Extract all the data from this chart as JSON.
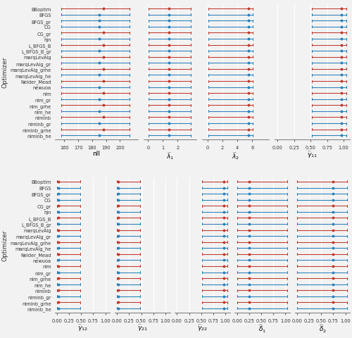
{
  "optimizers": [
    "BBoptim",
    "BFGS",
    "BFGS_gr",
    "CG",
    "CG_gr",
    "hjn",
    "L_BFGS_B",
    "L_BFGS_B_gr",
    "marqLevAlg",
    "marqLevAlg_gr",
    "marqLevAlg_grhe",
    "marqLevAlg_he",
    "Nelder_Mead",
    "newuoa",
    "nlm",
    "nlm_gr",
    "nlm_grhe",
    "nlm_he",
    "nlminb",
    "nlminb_gr",
    "nlminb_grhe",
    "nlminb_he"
  ],
  "colors": [
    "#c0392b",
    "#2980b9",
    "#2980b9",
    "#2980b9",
    "#c0392b",
    "#2980b9",
    "#c0392b",
    "#2980b9",
    "#c0392b",
    "#2980b9",
    "#c0392b",
    "#2980b9",
    "#c0392b",
    "#2980b9",
    "#c0392b",
    "#2980b9",
    "#c0392b",
    "#2980b9",
    "#c0392b",
    "#2980b9",
    "#c0392b",
    "#2980b9"
  ],
  "panels_row1": {
    "nll": {
      "xlabel": "nll",
      "xlim": [
        153,
        213
      ],
      "xticks": [
        160,
        170,
        180,
        190,
        200
      ],
      "medians": [
        188,
        185,
        185,
        185,
        188,
        185,
        188,
        185,
        188,
        185,
        188,
        185,
        188,
        185,
        188,
        185,
        188,
        185,
        188,
        185,
        188,
        185
      ],
      "ci_lo": [
        158,
        158,
        158,
        158,
        158,
        158,
        158,
        158,
        158,
        158,
        158,
        158,
        158,
        158,
        158,
        158,
        158,
        158,
        158,
        158,
        158,
        158
      ],
      "ci_hi": [
        207,
        207,
        207,
        207,
        207,
        207,
        207,
        207,
        207,
        207,
        207,
        207,
        207,
        207,
        207,
        207,
        207,
        207,
        207,
        207,
        207,
        207
      ]
    },
    "lambda1": {
      "xlabel": "$\\widehat{\\lambda}_1$",
      "xlim": [
        -0.3,
        3.3
      ],
      "xticks": [
        0,
        1,
        2
      ],
      "medians": [
        1.4,
        1.4,
        1.4,
        1.4,
        1.4,
        1.4,
        1.4,
        1.4,
        1.4,
        1.4,
        1.4,
        1.4,
        1.4,
        1.4,
        1.4,
        1.4,
        1.4,
        1.4,
        1.4,
        1.4,
        1.4,
        1.4
      ],
      "ci_lo": [
        0.05,
        0.05,
        0.05,
        0.05,
        0.05,
        0.05,
        0.05,
        0.05,
        0.05,
        0.05,
        0.05,
        0.05,
        0.05,
        0.05,
        0.05,
        0.05,
        0.05,
        0.05,
        0.05,
        0.05,
        0.05,
        0.05
      ],
      "ci_hi": [
        2.9,
        2.9,
        2.9,
        2.9,
        2.9,
        2.9,
        2.9,
        2.9,
        2.9,
        2.9,
        2.9,
        2.9,
        2.9,
        2.9,
        2.9,
        2.9,
        2.9,
        2.9,
        2.9,
        2.9,
        2.9,
        2.9
      ]
    },
    "lambda2": {
      "xlabel": "$\\widehat{\\lambda}_2$",
      "xlim": [
        -0.7,
        8.2
      ],
      "xticks": [
        0,
        2,
        4,
        6
      ],
      "medians": [
        5.5,
        5.5,
        5.5,
        5.5,
        5.5,
        5.5,
        5.5,
        5.5,
        5.5,
        5.5,
        5.5,
        5.5,
        5.5,
        5.5,
        5.5,
        5.5,
        5.5,
        5.5,
        5.5,
        5.5,
        5.5,
        5.5
      ],
      "ci_lo": [
        0.1,
        0.1,
        0.1,
        0.1,
        0.1,
        0.1,
        0.1,
        0.1,
        0.1,
        0.1,
        0.1,
        0.1,
        0.1,
        0.1,
        0.1,
        0.1,
        0.1,
        0.1,
        0.1,
        0.1,
        0.1,
        0.1
      ],
      "ci_hi": [
        6.1,
        6.1,
        6.1,
        6.1,
        6.1,
        6.1,
        6.1,
        6.1,
        6.1,
        6.1,
        6.1,
        6.1,
        6.1,
        6.1,
        6.1,
        6.1,
        6.1,
        6.1,
        6.1,
        6.1,
        6.1,
        6.1
      ]
    },
    "gamma11": {
      "xlabel": "$\\widehat{\\gamma}_{11}$",
      "xlim": [
        -0.05,
        1.1
      ],
      "xticks": [
        0.0,
        0.25,
        0.5,
        0.75,
        1.0
      ],
      "medians": [
        0.97,
        0.97,
        0.97,
        0.97,
        0.97,
        0.97,
        0.97,
        0.97,
        0.97,
        0.97,
        0.97,
        0.97,
        0.97,
        0.97,
        0.97,
        0.97,
        0.97,
        0.97,
        0.97,
        0.97,
        0.97,
        0.97
      ],
      "ci_lo": [
        0.52,
        0.52,
        0.52,
        0.52,
        0.52,
        0.52,
        0.52,
        0.52,
        0.52,
        0.52,
        0.52,
        0.52,
        0.52,
        0.52,
        0.52,
        0.52,
        0.52,
        0.52,
        0.52,
        0.52,
        0.52,
        0.52
      ],
      "ci_hi": [
        1.04,
        1.04,
        1.04,
        1.04,
        1.04,
        1.04,
        1.04,
        1.04,
        1.04,
        1.04,
        1.04,
        1.04,
        1.04,
        1.04,
        1.04,
        1.04,
        1.04,
        1.04,
        1.04,
        1.04,
        1.04,
        1.04
      ]
    }
  },
  "panels_row2": {
    "gamma12": {
      "xlabel": "$\\widehat{\\gamma}_{12}$",
      "xlim": [
        -0.05,
        1.1
      ],
      "xticks": [
        0.0,
        0.25,
        0.5,
        0.75,
        1.0
      ],
      "medians": [
        0.03,
        0.03,
        0.03,
        0.03,
        0.03,
        0.03,
        0.03,
        0.03,
        0.03,
        0.03,
        0.03,
        0.03,
        0.03,
        0.03,
        0.03,
        0.03,
        0.03,
        0.03,
        0.03,
        0.03,
        0.03,
        0.03
      ],
      "ci_lo": [
        0.0,
        0.0,
        0.0,
        0.0,
        0.0,
        0.0,
        0.0,
        0.0,
        0.0,
        0.0,
        0.0,
        0.0,
        0.0,
        0.0,
        0.0,
        0.0,
        0.0,
        0.0,
        0.0,
        0.0,
        0.0,
        0.0
      ],
      "ci_hi": [
        0.48,
        0.48,
        0.48,
        0.48,
        0.48,
        0.48,
        0.48,
        0.48,
        0.48,
        0.48,
        0.48,
        0.48,
        0.48,
        0.48,
        0.48,
        0.48,
        0.48,
        0.48,
        0.48,
        0.48,
        0.48,
        0.48
      ]
    },
    "gamma21": {
      "xlabel": "$\\widehat{\\gamma}_{21}$",
      "xlim": [
        -0.05,
        1.1
      ],
      "xticks": [
        0.0,
        0.25,
        0.5,
        0.75,
        1.0
      ],
      "medians": [
        0.03,
        0.03,
        0.03,
        0.03,
        0.03,
        0.03,
        0.03,
        0.03,
        0.03,
        0.03,
        0.03,
        0.03,
        0.03,
        0.03,
        0.03,
        0.03,
        0.03,
        0.03,
        0.03,
        0.03,
        0.03,
        0.03
      ],
      "ci_lo": [
        0.0,
        0.0,
        0.0,
        0.0,
        0.0,
        0.0,
        0.0,
        0.0,
        0.0,
        0.0,
        0.0,
        0.0,
        0.0,
        0.0,
        0.0,
        0.0,
        0.0,
        0.0,
        0.0,
        0.0,
        0.0,
        0.0
      ],
      "ci_hi": [
        0.48,
        0.48,
        0.48,
        0.48,
        0.48,
        0.48,
        0.48,
        0.48,
        0.48,
        0.48,
        0.48,
        0.48,
        0.48,
        0.48,
        0.48,
        0.48,
        0.48,
        0.48,
        0.48,
        0.48,
        0.48,
        0.48
      ]
    },
    "gamma22": {
      "xlabel": "$\\widehat{\\gamma}_{22}$",
      "xlim": [
        -0.05,
        1.1
      ],
      "xticks": [
        0.0,
        0.25,
        0.5,
        0.75,
        1.0
      ],
      "medians": [
        0.97,
        0.97,
        0.97,
        0.97,
        0.97,
        0.97,
        0.97,
        0.97,
        0.97,
        0.97,
        0.97,
        0.97,
        0.97,
        0.97,
        0.97,
        0.97,
        0.97,
        0.97,
        0.97,
        0.97,
        0.97,
        0.97
      ],
      "ci_lo": [
        0.52,
        0.52,
        0.52,
        0.52,
        0.52,
        0.52,
        0.52,
        0.52,
        0.52,
        0.52,
        0.52,
        0.52,
        0.52,
        0.52,
        0.52,
        0.52,
        0.52,
        0.52,
        0.52,
        0.52,
        0.52,
        0.52
      ],
      "ci_hi": [
        1.04,
        1.04,
        1.04,
        1.04,
        1.04,
        1.04,
        1.04,
        1.04,
        1.04,
        1.04,
        1.04,
        1.04,
        1.04,
        1.04,
        1.04,
        1.04,
        1.04,
        1.04,
        1.04,
        1.04,
        1.04,
        1.04
      ]
    },
    "delta1": {
      "xlabel": "$\\widehat{\\delta}_1$",
      "xlim": [
        -0.05,
        1.1
      ],
      "xticks": [
        0.0,
        0.25,
        0.5,
        0.75,
        1.0
      ],
      "medians": [
        0.25,
        0.25,
        0.25,
        0.25,
        0.25,
        0.25,
        0.25,
        0.25,
        0.25,
        0.25,
        0.25,
        0.25,
        0.25,
        0.25,
        0.25,
        0.25,
        0.25,
        0.25,
        0.25,
        0.25,
        0.25,
        0.25
      ],
      "ci_lo": [
        0.0,
        0.0,
        0.0,
        0.0,
        0.0,
        0.0,
        0.0,
        0.0,
        0.0,
        0.0,
        0.0,
        0.0,
        0.0,
        0.0,
        0.0,
        0.0,
        0.0,
        0.0,
        0.0,
        0.0,
        0.0,
        0.0
      ],
      "ci_hi": [
        1.04,
        1.04,
        1.04,
        1.04,
        1.04,
        1.04,
        1.04,
        1.04,
        1.04,
        1.04,
        1.04,
        1.04,
        1.04,
        1.04,
        1.04,
        1.04,
        1.04,
        1.04,
        1.04,
        1.04,
        1.04,
        1.04
      ]
    },
    "delta2": {
      "xlabel": "$\\widehat{\\delta}_2$",
      "xlim": [
        -0.05,
        1.1
      ],
      "xticks": [
        0.0,
        0.25,
        0.5,
        0.75,
        1.0
      ],
      "medians": [
        0.75,
        0.75,
        0.75,
        0.75,
        0.75,
        0.75,
        0.75,
        0.75,
        0.75,
        0.75,
        0.75,
        0.75,
        0.75,
        0.75,
        0.75,
        0.75,
        0.75,
        0.75,
        0.75,
        0.75,
        0.75,
        0.75
      ],
      "ci_lo": [
        0.0,
        0.0,
        0.0,
        0.0,
        0.0,
        0.0,
        0.0,
        0.0,
        0.0,
        0.0,
        0.0,
        0.0,
        0.0,
        0.0,
        0.0,
        0.0,
        0.0,
        0.0,
        0.0,
        0.0,
        0.0,
        0.0
      ],
      "ci_hi": [
        1.04,
        1.04,
        1.04,
        1.04,
        1.04,
        1.04,
        1.04,
        1.04,
        1.04,
        1.04,
        1.04,
        1.04,
        1.04,
        1.04,
        1.04,
        1.04,
        1.04,
        1.04,
        1.04,
        1.04,
        1.04,
        1.04
      ]
    }
  },
  "background_color": "#f2f2f2",
  "grid_color": "#ffffff",
  "ylabel_color": "#333333",
  "tick_color": "#333333"
}
